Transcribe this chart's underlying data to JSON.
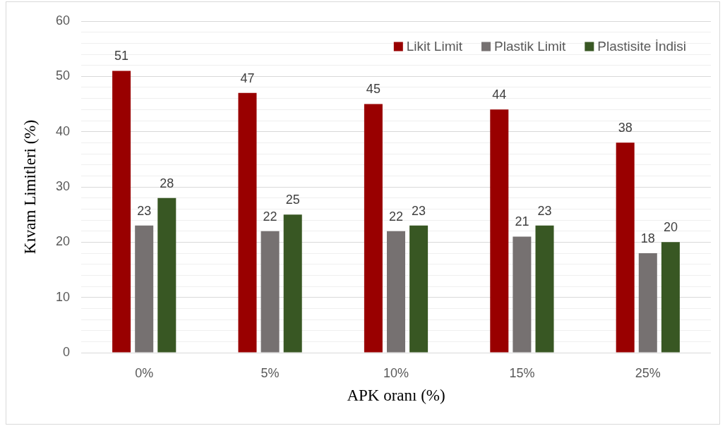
{
  "chart_data": {
    "type": "bar",
    "categories": [
      "0%",
      "5%",
      "10%",
      "15%",
      "25%"
    ],
    "xlabel": "APK oranı (%)",
    "ylabel": "Kıvam Limitleri (%)",
    "series": [
      {
        "name": "Likit Limit",
        "color": "#990000",
        "values": [
          51,
          47,
          45,
          44,
          38
        ]
      },
      {
        "name": "Plastik Limit",
        "color": "#767171",
        "values": [
          23,
          22,
          22,
          21,
          18
        ]
      },
      {
        "name": "Plastisite İndisi",
        "color": "#385723",
        "values": [
          28,
          25,
          23,
          23,
          20
        ]
      }
    ],
    "ylim": [
      0,
      60
    ],
    "yticks": [
      0,
      {
        "value": 2,
        "label": null
      },
      {
        "value": 4,
        "label": null
      },
      {
        "value": 6,
        "label": null
      },
      {
        "value": 8,
        "label": null
      },
      10,
      {
        "value": 12,
        "label": null
      },
      {
        "value": 14,
        "label": null
      },
      {
        "value": 16,
        "label": null
      },
      {
        "value": 18,
        "label": null
      },
      20,
      {
        "value": 22,
        "label": null
      },
      {
        "value": 24,
        "label": null
      },
      {
        "value": 26,
        "label": null
      },
      {
        "value": 28,
        "label": null
      },
      30,
      {
        "value": 32,
        "label": null
      },
      {
        "value": 34,
        "label": null
      },
      {
        "value": 36,
        "label": null
      },
      {
        "value": 38,
        "label": null
      },
      40,
      {
        "value": 42,
        "label": null
      },
      {
        "value": 44,
        "label": null
      },
      {
        "value": 46,
        "label": null
      },
      {
        "value": 48,
        "label": null
      },
      50,
      {
        "value": 52,
        "label": null
      },
      {
        "value": 54,
        "label": null
      },
      {
        "value": 56,
        "label": null
      },
      {
        "value": 58,
        "label": null
      },
      60
    ],
    "grid": "y",
    "legend": "top right",
    "data_labels": true
  }
}
